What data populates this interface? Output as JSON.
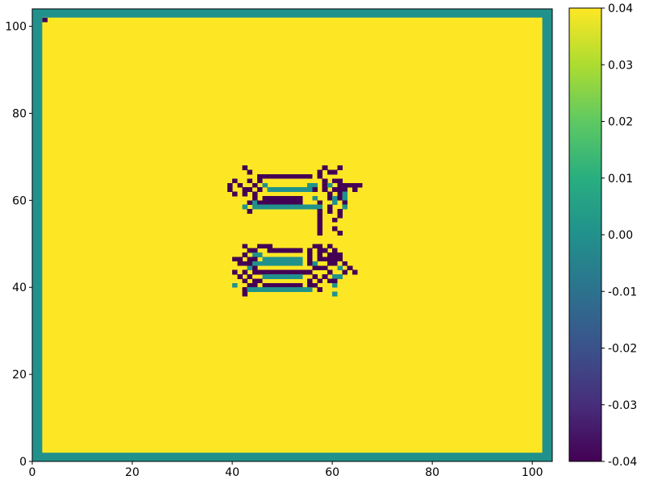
{
  "chart_data": {
    "type": "heatmap",
    "title": "",
    "xlabel": "",
    "ylabel": "",
    "xlim": [
      0,
      104
    ],
    "ylim": [
      0,
      104
    ],
    "xticks": [
      0,
      20,
      40,
      60,
      80,
      100
    ],
    "yticks": [
      0,
      20,
      40,
      60,
      80,
      100
    ],
    "colormap": "viridis",
    "colorbar": {
      "vmin": -0.04,
      "vmax": 0.04,
      "ticks": [
        "-0.04",
        "-0.03",
        "-0.02",
        "-0.01",
        "0.00",
        "0.01",
        "0.02",
        "0.03",
        "0.04"
      ]
    },
    "background_value": 0.04,
    "border_value": 0.0,
    "inner_region": [
      2,
      102,
      2,
      102
    ],
    "cells": [
      {
        "x": 2,
        "y": 101,
        "v": -0.04
      },
      {
        "x": 42,
        "y": 67,
        "v": -0.04
      },
      {
        "x": 58,
        "y": 67,
        "v": -0.04
      },
      {
        "x": 61,
        "y": 67,
        "v": -0.04
      },
      {
        "x": 43,
        "y": 66,
        "v": -0.04
      },
      {
        "x": 57,
        "y": 66,
        "v": -0.04
      },
      {
        "x": 59,
        "y": 66,
        "v": -0.04
      },
      {
        "x": 60,
        "y": 66,
        "v": -0.04
      },
      {
        "x": 45,
        "y": 65,
        "v": -0.04
      },
      {
        "x": 46,
        "y": 65,
        "v": -0.04
      },
      {
        "x": 47,
        "y": 65,
        "v": -0.04
      },
      {
        "x": 48,
        "y": 65,
        "v": -0.04
      },
      {
        "x": 49,
        "y": 65,
        "v": -0.04
      },
      {
        "x": 50,
        "y": 65,
        "v": -0.04
      },
      {
        "x": 51,
        "y": 65,
        "v": -0.04
      },
      {
        "x": 52,
        "y": 65,
        "v": -0.04
      },
      {
        "x": 53,
        "y": 65,
        "v": -0.04
      },
      {
        "x": 54,
        "y": 65,
        "v": -0.04
      },
      {
        "x": 55,
        "y": 65,
        "v": -0.04
      },
      {
        "x": 57,
        "y": 65,
        "v": -0.04
      },
      {
        "x": 40,
        "y": 64,
        "v": -0.04
      },
      {
        "x": 43,
        "y": 64,
        "v": -0.04
      },
      {
        "x": 45,
        "y": 64,
        "v": -0.04
      },
      {
        "x": 58,
        "y": 64,
        "v": -0.04
      },
      {
        "x": 60,
        "y": 64,
        "v": -0.04
      },
      {
        "x": 61,
        "y": 64,
        "v": -0.04
      },
      {
        "x": 39,
        "y": 63,
        "v": -0.04
      },
      {
        "x": 41,
        "y": 63,
        "v": -0.04
      },
      {
        "x": 44,
        "y": 63,
        "v": -0.04
      },
      {
        "x": 46,
        "y": 63,
        "v": 0.0
      },
      {
        "x": 55,
        "y": 63,
        "v": 0.0
      },
      {
        "x": 56,
        "y": 63,
        "v": 0.0
      },
      {
        "x": 58,
        "y": 63,
        "v": -0.04
      },
      {
        "x": 59,
        "y": 63,
        "v": 0.0
      },
      {
        "x": 61,
        "y": 63,
        "v": -0.04
      },
      {
        "x": 62,
        "y": 63,
        "v": -0.04
      },
      {
        "x": 63,
        "y": 63,
        "v": -0.04
      },
      {
        "x": 64,
        "y": 63,
        "v": -0.04
      },
      {
        "x": 65,
        "y": 63,
        "v": -0.04
      },
      {
        "x": 39,
        "y": 62,
        "v": -0.04
      },
      {
        "x": 42,
        "y": 62,
        "v": -0.04
      },
      {
        "x": 43,
        "y": 62,
        "v": -0.04
      },
      {
        "x": 45,
        "y": 62,
        "v": -0.04
      },
      {
        "x": 47,
        "y": 62,
        "v": 0.0
      },
      {
        "x": 48,
        "y": 62,
        "v": 0.0
      },
      {
        "x": 49,
        "y": 62,
        "v": 0.0
      },
      {
        "x": 50,
        "y": 62,
        "v": 0.0
      },
      {
        "x": 51,
        "y": 62,
        "v": 0.0
      },
      {
        "x": 52,
        "y": 62,
        "v": 0.0
      },
      {
        "x": 53,
        "y": 62,
        "v": 0.0
      },
      {
        "x": 54,
        "y": 62,
        "v": 0.0
      },
      {
        "x": 55,
        "y": 62,
        "v": 0.0
      },
      {
        "x": 56,
        "y": 62,
        "v": -0.04
      },
      {
        "x": 58,
        "y": 62,
        "v": -0.04
      },
      {
        "x": 60,
        "y": 62,
        "v": -0.04
      },
      {
        "x": 61,
        "y": 62,
        "v": -0.04
      },
      {
        "x": 62,
        "y": 62,
        "v": -0.04
      },
      {
        "x": 64,
        "y": 62,
        "v": -0.04
      },
      {
        "x": 40,
        "y": 61,
        "v": -0.04
      },
      {
        "x": 42,
        "y": 61,
        "v": -0.04
      },
      {
        "x": 44,
        "y": 61,
        "v": -0.04
      },
      {
        "x": 59,
        "y": 61,
        "v": -0.04
      },
      {
        "x": 61,
        "y": 61,
        "v": -0.04
      },
      {
        "x": 62,
        "y": 61,
        "v": 0.0
      },
      {
        "x": 44,
        "y": 60,
        "v": -0.04
      },
      {
        "x": 46,
        "y": 60,
        "v": -0.04
      },
      {
        "x": 47,
        "y": 60,
        "v": -0.04
      },
      {
        "x": 48,
        "y": 60,
        "v": -0.04
      },
      {
        "x": 49,
        "y": 60,
        "v": -0.04
      },
      {
        "x": 50,
        "y": 60,
        "v": -0.04
      },
      {
        "x": 51,
        "y": 60,
        "v": -0.04
      },
      {
        "x": 52,
        "y": 60,
        "v": -0.04
      },
      {
        "x": 53,
        "y": 60,
        "v": -0.04
      },
      {
        "x": 56,
        "y": 60,
        "v": 0.0
      },
      {
        "x": 59,
        "y": 60,
        "v": -0.04
      },
      {
        "x": 60,
        "y": 60,
        "v": 0.0
      },
      {
        "x": 61,
        "y": 60,
        "v": -0.04
      },
      {
        "x": 62,
        "y": 60,
        "v": 0.0
      },
      {
        "x": 43,
        "y": 59,
        "v": -0.04
      },
      {
        "x": 44,
        "y": 59,
        "v": 0.0
      },
      {
        "x": 45,
        "y": 59,
        "v": -0.04
      },
      {
        "x": 46,
        "y": 59,
        "v": -0.04
      },
      {
        "x": 47,
        "y": 59,
        "v": -0.04
      },
      {
        "x": 48,
        "y": 59,
        "v": -0.04
      },
      {
        "x": 49,
        "y": 59,
        "v": -0.04
      },
      {
        "x": 50,
        "y": 59,
        "v": -0.04
      },
      {
        "x": 51,
        "y": 59,
        "v": -0.04
      },
      {
        "x": 52,
        "y": 59,
        "v": -0.04
      },
      {
        "x": 53,
        "y": 59,
        "v": -0.04
      },
      {
        "x": 57,
        "y": 59,
        "v": -0.04
      },
      {
        "x": 60,
        "y": 59,
        "v": 0.0
      },
      {
        "x": 62,
        "y": 59,
        "v": -0.04
      },
      {
        "x": 42,
        "y": 58,
        "v": 0.0
      },
      {
        "x": 44,
        "y": 58,
        "v": 0.0
      },
      {
        "x": 45,
        "y": 58,
        "v": 0.0
      },
      {
        "x": 46,
        "y": 58,
        "v": 0.0
      },
      {
        "x": 47,
        "y": 58,
        "v": 0.0
      },
      {
        "x": 48,
        "y": 58,
        "v": 0.0
      },
      {
        "x": 49,
        "y": 58,
        "v": 0.0
      },
      {
        "x": 50,
        "y": 58,
        "v": 0.0
      },
      {
        "x": 51,
        "y": 58,
        "v": 0.0
      },
      {
        "x": 52,
        "y": 58,
        "v": 0.0
      },
      {
        "x": 53,
        "y": 58,
        "v": 0.0
      },
      {
        "x": 54,
        "y": 58,
        "v": 0.0
      },
      {
        "x": 55,
        "y": 58,
        "v": 0.0
      },
      {
        "x": 56,
        "y": 58,
        "v": 0.0
      },
      {
        "x": 57,
        "y": 58,
        "v": 0.0
      },
      {
        "x": 59,
        "y": 58,
        "v": -0.04
      },
      {
        "x": 62,
        "y": 58,
        "v": 0.0
      },
      {
        "x": 43,
        "y": 57,
        "v": -0.04
      },
      {
        "x": 57,
        "y": 57,
        "v": -0.04
      },
      {
        "x": 59,
        "y": 57,
        "v": -0.04
      },
      {
        "x": 61,
        "y": 57,
        "v": -0.04
      },
      {
        "x": 57,
        "y": 56,
        "v": -0.04
      },
      {
        "x": 61,
        "y": 56,
        "v": -0.04
      },
      {
        "x": 57,
        "y": 55,
        "v": -0.04
      },
      {
        "x": 60,
        "y": 55,
        "v": -0.04
      },
      {
        "x": 57,
        "y": 54,
        "v": -0.04
      },
      {
        "x": 57,
        "y": 53,
        "v": -0.04
      },
      {
        "x": 60,
        "y": 53,
        "v": -0.04
      },
      {
        "x": 57,
        "y": 52,
        "v": -0.04
      },
      {
        "x": 61,
        "y": 52,
        "v": -0.04
      },
      {
        "x": 42,
        "y": 49,
        "v": -0.04
      },
      {
        "x": 45,
        "y": 49,
        "v": -0.04
      },
      {
        "x": 46,
        "y": 49,
        "v": -0.04
      },
      {
        "x": 47,
        "y": 49,
        "v": -0.04
      },
      {
        "x": 56,
        "y": 49,
        "v": -0.04
      },
      {
        "x": 57,
        "y": 49,
        "v": -0.04
      },
      {
        "x": 59,
        "y": 49,
        "v": -0.04
      },
      {
        "x": 43,
        "y": 48,
        "v": -0.04
      },
      {
        "x": 44,
        "y": 48,
        "v": -0.04
      },
      {
        "x": 47,
        "y": 48,
        "v": -0.04
      },
      {
        "x": 48,
        "y": 48,
        "v": -0.04
      },
      {
        "x": 49,
        "y": 48,
        "v": -0.04
      },
      {
        "x": 50,
        "y": 48,
        "v": -0.04
      },
      {
        "x": 51,
        "y": 48,
        "v": -0.04
      },
      {
        "x": 52,
        "y": 48,
        "v": -0.04
      },
      {
        "x": 53,
        "y": 48,
        "v": -0.04
      },
      {
        "x": 55,
        "y": 48,
        "v": -0.04
      },
      {
        "x": 57,
        "y": 48,
        "v": -0.04
      },
      {
        "x": 58,
        "y": 48,
        "v": -0.04
      },
      {
        "x": 60,
        "y": 48,
        "v": -0.04
      },
      {
        "x": 42,
        "y": 47,
        "v": -0.04
      },
      {
        "x": 44,
        "y": 47,
        "v": 0.0
      },
      {
        "x": 45,
        "y": 47,
        "v": 0.0
      },
      {
        "x": 55,
        "y": 47,
        "v": -0.04
      },
      {
        "x": 57,
        "y": 47,
        "v": -0.04
      },
      {
        "x": 59,
        "y": 47,
        "v": -0.04
      },
      {
        "x": 60,
        "y": 47,
        "v": -0.04
      },
      {
        "x": 61,
        "y": 47,
        "v": -0.04
      },
      {
        "x": 40,
        "y": 46,
        "v": -0.04
      },
      {
        "x": 41,
        "y": 46,
        "v": -0.04
      },
      {
        "x": 43,
        "y": 46,
        "v": -0.04
      },
      {
        "x": 44,
        "y": 46,
        "v": -0.04
      },
      {
        "x": 46,
        "y": 46,
        "v": 0.0
      },
      {
        "x": 47,
        "y": 46,
        "v": 0.0
      },
      {
        "x": 48,
        "y": 46,
        "v": 0.0
      },
      {
        "x": 49,
        "y": 46,
        "v": 0.0
      },
      {
        "x": 50,
        "y": 46,
        "v": 0.0
      },
      {
        "x": 51,
        "y": 46,
        "v": 0.0
      },
      {
        "x": 52,
        "y": 46,
        "v": 0.0
      },
      {
        "x": 53,
        "y": 46,
        "v": 0.0
      },
      {
        "x": 55,
        "y": 46,
        "v": -0.04
      },
      {
        "x": 57,
        "y": 46,
        "v": -0.04
      },
      {
        "x": 58,
        "y": 46,
        "v": -0.04
      },
      {
        "x": 59,
        "y": 46,
        "v": -0.04
      },
      {
        "x": 60,
        "y": 46,
        "v": -0.04
      },
      {
        "x": 61,
        "y": 46,
        "v": -0.04
      },
      {
        "x": 41,
        "y": 45,
        "v": -0.04
      },
      {
        "x": 42,
        "y": 45,
        "v": -0.04
      },
      {
        "x": 43,
        "y": 45,
        "v": -0.04
      },
      {
        "x": 44,
        "y": 45,
        "v": 0.0
      },
      {
        "x": 45,
        "y": 45,
        "v": 0.0
      },
      {
        "x": 46,
        "y": 45,
        "v": 0.0
      },
      {
        "x": 47,
        "y": 45,
        "v": 0.0
      },
      {
        "x": 48,
        "y": 45,
        "v": 0.0
      },
      {
        "x": 49,
        "y": 45,
        "v": 0.0
      },
      {
        "x": 50,
        "y": 45,
        "v": 0.0
      },
      {
        "x": 51,
        "y": 45,
        "v": 0.0
      },
      {
        "x": 52,
        "y": 45,
        "v": 0.0
      },
      {
        "x": 53,
        "y": 45,
        "v": 0.0
      },
      {
        "x": 55,
        "y": 45,
        "v": -0.04
      },
      {
        "x": 56,
        "y": 45,
        "v": 0.0
      },
      {
        "x": 59,
        "y": 45,
        "v": -0.04
      },
      {
        "x": 60,
        "y": 45,
        "v": -0.04
      },
      {
        "x": 62,
        "y": 45,
        "v": -0.04
      },
      {
        "x": 43,
        "y": 44,
        "v": 0.0
      },
      {
        "x": 44,
        "y": 44,
        "v": -0.04
      },
      {
        "x": 56,
        "y": 44,
        "v": -0.04
      },
      {
        "x": 57,
        "y": 44,
        "v": -0.04
      },
      {
        "x": 58,
        "y": 44,
        "v": -0.04
      },
      {
        "x": 61,
        "y": 44,
        "v": 0.0
      },
      {
        "x": 63,
        "y": 44,
        "v": -0.04
      },
      {
        "x": 40,
        "y": 43,
        "v": -0.04
      },
      {
        "x": 42,
        "y": 43,
        "v": -0.04
      },
      {
        "x": 44,
        "y": 43,
        "v": -0.04
      },
      {
        "x": 45,
        "y": 43,
        "v": -0.04
      },
      {
        "x": 46,
        "y": 43,
        "v": -0.04
      },
      {
        "x": 47,
        "y": 43,
        "v": -0.04
      },
      {
        "x": 48,
        "y": 43,
        "v": -0.04
      },
      {
        "x": 49,
        "y": 43,
        "v": -0.04
      },
      {
        "x": 50,
        "y": 43,
        "v": -0.04
      },
      {
        "x": 51,
        "y": 43,
        "v": -0.04
      },
      {
        "x": 52,
        "y": 43,
        "v": -0.04
      },
      {
        "x": 53,
        "y": 43,
        "v": -0.04
      },
      {
        "x": 54,
        "y": 43,
        "v": -0.04
      },
      {
        "x": 55,
        "y": 43,
        "v": -0.04
      },
      {
        "x": 59,
        "y": 43,
        "v": -0.04
      },
      {
        "x": 62,
        "y": 43,
        "v": -0.04
      },
      {
        "x": 64,
        "y": 43,
        "v": -0.04
      },
      {
        "x": 41,
        "y": 42,
        "v": -0.04
      },
      {
        "x": 43,
        "y": 42,
        "v": -0.04
      },
      {
        "x": 46,
        "y": 42,
        "v": 0.0
      },
      {
        "x": 47,
        "y": 42,
        "v": 0.0
      },
      {
        "x": 48,
        "y": 42,
        "v": 0.0
      },
      {
        "x": 49,
        "y": 42,
        "v": 0.0
      },
      {
        "x": 50,
        "y": 42,
        "v": 0.0
      },
      {
        "x": 51,
        "y": 42,
        "v": 0.0
      },
      {
        "x": 52,
        "y": 42,
        "v": 0.0
      },
      {
        "x": 53,
        "y": 42,
        "v": 0.0
      },
      {
        "x": 56,
        "y": 42,
        "v": -0.04
      },
      {
        "x": 58,
        "y": 42,
        "v": -0.04
      },
      {
        "x": 60,
        "y": 42,
        "v": 0.0
      },
      {
        "x": 61,
        "y": 42,
        "v": 0.0
      },
      {
        "x": 42,
        "y": 41,
        "v": -0.04
      },
      {
        "x": 44,
        "y": 41,
        "v": -0.04
      },
      {
        "x": 45,
        "y": 41,
        "v": -0.04
      },
      {
        "x": 55,
        "y": 41,
        "v": -0.04
      },
      {
        "x": 57,
        "y": 41,
        "v": -0.04
      },
      {
        "x": 59,
        "y": 41,
        "v": -0.04
      },
      {
        "x": 60,
        "y": 41,
        "v": -0.04
      },
      {
        "x": 40,
        "y": 40,
        "v": 0.0
      },
      {
        "x": 43,
        "y": 40,
        "v": -0.04
      },
      {
        "x": 44,
        "y": 40,
        "v": -0.04
      },
      {
        "x": 46,
        "y": 40,
        "v": -0.04
      },
      {
        "x": 47,
        "y": 40,
        "v": -0.04
      },
      {
        "x": 48,
        "y": 40,
        "v": -0.04
      },
      {
        "x": 49,
        "y": 40,
        "v": -0.04
      },
      {
        "x": 50,
        "y": 40,
        "v": -0.04
      },
      {
        "x": 51,
        "y": 40,
        "v": -0.04
      },
      {
        "x": 52,
        "y": 40,
        "v": -0.04
      },
      {
        "x": 53,
        "y": 40,
        "v": -0.04
      },
      {
        "x": 55,
        "y": 40,
        "v": -0.04
      },
      {
        "x": 56,
        "y": 40,
        "v": -0.04
      },
      {
        "x": 60,
        "y": 40,
        "v": 0.0
      },
      {
        "x": 42,
        "y": 39,
        "v": -0.04
      },
      {
        "x": 43,
        "y": 39,
        "v": 0.0
      },
      {
        "x": 44,
        "y": 39,
        "v": 0.0
      },
      {
        "x": 45,
        "y": 39,
        "v": 0.0
      },
      {
        "x": 46,
        "y": 39,
        "v": 0.0
      },
      {
        "x": 47,
        "y": 39,
        "v": 0.0
      },
      {
        "x": 48,
        "y": 39,
        "v": 0.0
      },
      {
        "x": 49,
        "y": 39,
        "v": 0.0
      },
      {
        "x": 50,
        "y": 39,
        "v": 0.0
      },
      {
        "x": 51,
        "y": 39,
        "v": 0.0
      },
      {
        "x": 52,
        "y": 39,
        "v": 0.0
      },
      {
        "x": 53,
        "y": 39,
        "v": 0.0
      },
      {
        "x": 54,
        "y": 39,
        "v": 0.0
      },
      {
        "x": 55,
        "y": 39,
        "v": 0.0
      },
      {
        "x": 57,
        "y": 39,
        "v": -0.04
      },
      {
        "x": 42,
        "y": 38,
        "v": -0.04
      },
      {
        "x": 60,
        "y": 38,
        "v": 0.0
      }
    ]
  }
}
